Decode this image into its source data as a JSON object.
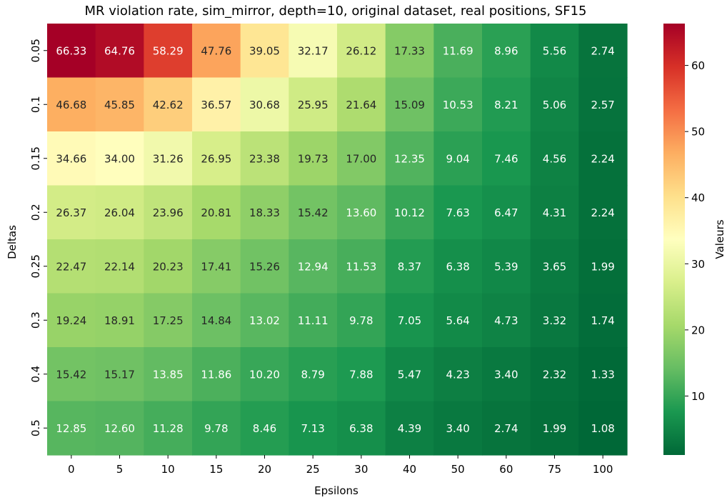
{
  "chart_data": {
    "type": "heatmap",
    "title": "MR violation rate, sim_mirror, depth=10, original dataset, real positions, SF15",
    "xlabel": "Epsilons",
    "ylabel": "Deltas",
    "colorbar_label": "Valeurs",
    "colorbar_ticks": [
      "10",
      "20",
      "30",
      "40",
      "50",
      "60"
    ],
    "colormap": "RdYlGn_r",
    "value_range": [
      1.08,
      66.33
    ],
    "x": [
      "0",
      "5",
      "10",
      "15",
      "20",
      "25",
      "30",
      "40",
      "50",
      "60",
      "75",
      "100"
    ],
    "y": [
      "0.05",
      "0.1",
      "0.15",
      "0.2",
      "0.25",
      "0.3",
      "0.4",
      "0.5"
    ],
    "values": [
      [
        66.33,
        64.76,
        58.29,
        47.76,
        39.05,
        32.17,
        26.12,
        17.33,
        11.69,
        8.96,
        5.56,
        2.74
      ],
      [
        46.68,
        45.85,
        42.62,
        36.57,
        30.68,
        25.95,
        21.64,
        15.09,
        10.53,
        8.21,
        5.06,
        2.57
      ],
      [
        34.66,
        34.0,
        31.26,
        26.95,
        23.38,
        19.73,
        17.0,
        12.35,
        9.04,
        7.46,
        4.56,
        2.24
      ],
      [
        26.37,
        26.04,
        23.96,
        20.81,
        18.33,
        15.42,
        13.6,
        10.12,
        7.63,
        6.47,
        4.31,
        2.24
      ],
      [
        22.47,
        22.14,
        20.23,
        17.41,
        15.26,
        12.94,
        11.53,
        8.37,
        6.38,
        5.39,
        3.65,
        1.99
      ],
      [
        19.24,
        18.91,
        17.25,
        14.84,
        13.02,
        11.11,
        9.78,
        7.05,
        5.64,
        4.73,
        3.32,
        1.74
      ],
      [
        15.42,
        15.17,
        13.85,
        11.86,
        10.2,
        8.79,
        7.88,
        5.47,
        4.23,
        3.4,
        2.32,
        1.33
      ],
      [
        12.85,
        12.6,
        11.28,
        9.78,
        8.46,
        7.13,
        6.38,
        4.39,
        3.4,
        2.74,
        1.99,
        1.08
      ]
    ],
    "value_labels": [
      [
        "66.33",
        "64.76",
        "58.29",
        "47.76",
        "39.05",
        "32.17",
        "26.12",
        "17.33",
        "11.69",
        "8.96",
        "5.56",
        "2.74"
      ],
      [
        "46.68",
        "45.85",
        "42.62",
        "36.57",
        "30.68",
        "25.95",
        "21.64",
        "15.09",
        "10.53",
        "8.21",
        "5.06",
        "2.57"
      ],
      [
        "34.66",
        "34.00",
        "31.26",
        "26.95",
        "23.38",
        "19.73",
        "17.00",
        "12.35",
        "9.04",
        "7.46",
        "4.56",
        "2.24"
      ],
      [
        "26.37",
        "26.04",
        "23.96",
        "20.81",
        "18.33",
        "15.42",
        "13.60",
        "10.12",
        "7.63",
        "6.47",
        "4.31",
        "2.24"
      ],
      [
        "22.47",
        "22.14",
        "20.23",
        "17.41",
        "15.26",
        "12.94",
        "11.53",
        "8.37",
        "6.38",
        "5.39",
        "3.65",
        "1.99"
      ],
      [
        "19.24",
        "18.91",
        "17.25",
        "14.84",
        "13.02",
        "11.11",
        "9.78",
        "7.05",
        "5.64",
        "4.73",
        "3.32",
        "1.74"
      ],
      [
        "15.42",
        "15.17",
        "13.85",
        "11.86",
        "10.20",
        "8.79",
        "7.88",
        "5.47",
        "4.23",
        "3.40",
        "2.32",
        "1.33"
      ],
      [
        "12.85",
        "12.60",
        "11.28",
        "9.78",
        "8.46",
        "7.13",
        "6.38",
        "4.39",
        "3.40",
        "2.74",
        "1.99",
        "1.08"
      ]
    ],
    "grid": false,
    "legend": "colorbar-right"
  }
}
